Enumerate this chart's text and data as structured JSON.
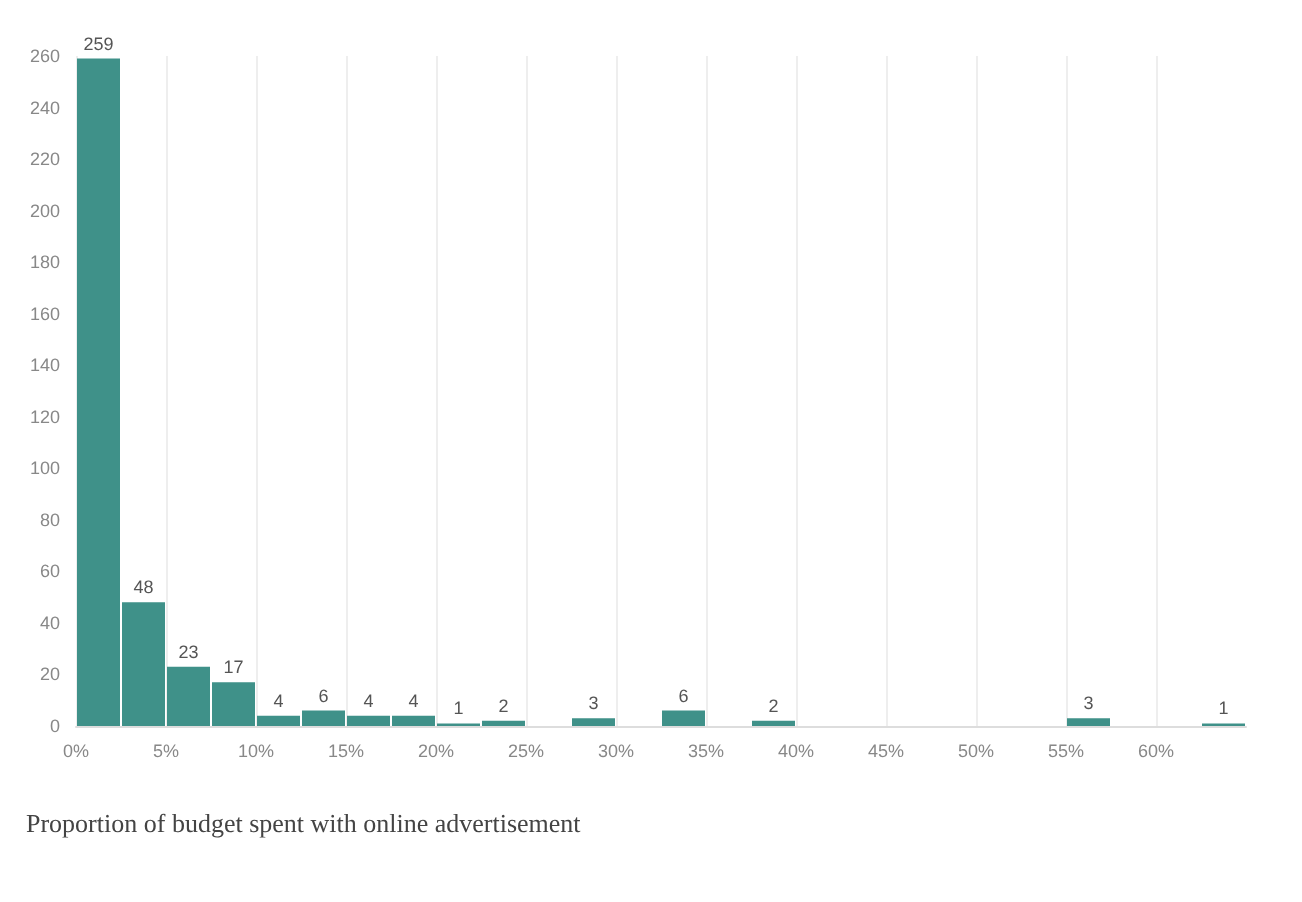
{
  "chart_data": {
    "type": "histogram",
    "xlabel": "Proportion of budget spent with online advertisement",
    "color": "#3f9189",
    "bins": [
      0,
      2.5,
      5,
      7.5,
      10,
      12.5,
      15,
      17.5,
      20,
      22.5,
      25,
      27.5,
      30,
      32.5,
      35,
      37.5,
      40,
      42.5,
      45,
      47.5,
      50,
      52.5,
      55,
      57.5,
      60,
      62.5,
      65
    ],
    "values": [
      259,
      48,
      23,
      17,
      4,
      6,
      4,
      4,
      1,
      2,
      0,
      3,
      0,
      6,
      0,
      2,
      0,
      0,
      0,
      0,
      0,
      0,
      3,
      0,
      0,
      1
    ],
    "value_labels": [
      "259",
      "48",
      "23",
      "17",
      "4",
      "6",
      "4",
      "4",
      "1",
      "2",
      null,
      "3",
      null,
      "6",
      null,
      "2",
      null,
      null,
      null,
      null,
      null,
      null,
      "3",
      null,
      null,
      "1"
    ],
    "xlim": [
      0,
      65
    ],
    "xticks": [
      {
        "value": 0,
        "label": "0%"
      },
      {
        "value": 5,
        "label": "5%"
      },
      {
        "value": 10,
        "label": "10%"
      },
      {
        "value": 15,
        "label": "15%"
      },
      {
        "value": 20,
        "label": "20%"
      },
      {
        "value": 25,
        "label": "25%"
      },
      {
        "value": 30,
        "label": "30%"
      },
      {
        "value": 35,
        "label": "35%"
      },
      {
        "value": 40,
        "label": "40%"
      },
      {
        "value": 45,
        "label": "45%"
      },
      {
        "value": 50,
        "label": "50%"
      },
      {
        "value": 55,
        "label": "55%"
      },
      {
        "value": 60,
        "label": "60%"
      }
    ],
    "ylim": [
      0,
      260
    ],
    "yticks": [
      0,
      20,
      40,
      60,
      80,
      100,
      120,
      140,
      160,
      180,
      200,
      220,
      240,
      260
    ],
    "grid": "x"
  }
}
